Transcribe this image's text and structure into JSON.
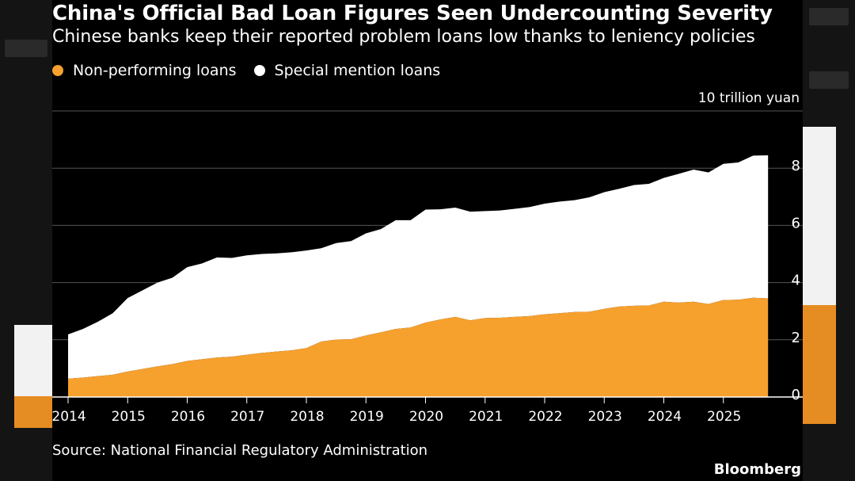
{
  "title": "China's Official Bad Loan Figures Seen Undercounting Severity",
  "subtitle": "Chinese banks keep their reported problem loans low thanks to leniency policies",
  "unit_label": "10 trillion yuan",
  "source": "Source: National Financial Regulatory Administration",
  "brand": "Bloomberg",
  "colors": {
    "npl": "#f6a02e",
    "sml": "#ffffff",
    "grid": "#555555",
    "background": "#000000",
    "text": "#ffffff"
  },
  "chart_data": {
    "type": "area",
    "stacked": true,
    "xlabel": "",
    "ylabel": "10 trillion yuan",
    "xlim": [
      2014,
      2026
    ],
    "ylim": [
      0,
      10
    ],
    "yticks": [
      0,
      2,
      4,
      6,
      8
    ],
    "xticks": [
      2014,
      2015,
      2016,
      2017,
      2018,
      2019,
      2020,
      2021,
      2022,
      2023,
      2024,
      2025
    ],
    "grid": "horizontal",
    "legend_position": "top-left",
    "x": [
      2014.0,
      2014.25,
      2014.5,
      2014.75,
      2015.0,
      2015.25,
      2015.5,
      2015.75,
      2016.0,
      2016.25,
      2016.5,
      2016.75,
      2017.0,
      2017.25,
      2017.5,
      2017.75,
      2018.0,
      2018.25,
      2018.5,
      2018.75,
      2019.0,
      2019.25,
      2019.5,
      2019.75,
      2020.0,
      2020.25,
      2020.5,
      2020.75,
      2021.0,
      2021.25,
      2021.5,
      2021.75,
      2022.0,
      2022.25,
      2022.5,
      2022.75,
      2023.0,
      2023.25,
      2023.5,
      2023.75,
      2024.0,
      2024.25,
      2024.5,
      2024.75,
      2025.0,
      2025.25,
      2025.5,
      2025.75
    ],
    "series": [
      {
        "name": "Non-performing loans",
        "color": "#f6a02e",
        "values": [
          0.64,
          0.68,
          0.73,
          0.78,
          0.89,
          0.98,
          1.07,
          1.15,
          1.26,
          1.32,
          1.38,
          1.41,
          1.48,
          1.54,
          1.59,
          1.63,
          1.71,
          1.94,
          2.01,
          2.02,
          2.15,
          2.26,
          2.38,
          2.43,
          2.6,
          2.71,
          2.8,
          2.68,
          2.76,
          2.77,
          2.8,
          2.83,
          2.89,
          2.93,
          2.97,
          2.98,
          3.08,
          3.16,
          3.19,
          3.2,
          3.33,
          3.3,
          3.33,
          3.25,
          3.39,
          3.4,
          3.47,
          3.45
        ]
      },
      {
        "name": "Special mention loans",
        "color": "#ffffff",
        "values": [
          1.55,
          1.7,
          1.9,
          2.15,
          2.57,
          2.75,
          2.93,
          3.02,
          3.28,
          3.35,
          3.5,
          3.45,
          3.47,
          3.46,
          3.43,
          3.43,
          3.41,
          3.26,
          3.37,
          3.43,
          3.57,
          3.61,
          3.8,
          3.75,
          3.95,
          3.85,
          3.82,
          3.8,
          3.74,
          3.75,
          3.78,
          3.81,
          3.87,
          3.9,
          3.91,
          4.0,
          4.08,
          4.12,
          4.22,
          4.25,
          4.33,
          4.5,
          4.62,
          4.6,
          4.76,
          4.8,
          4.97,
          5.0
        ]
      }
    ]
  }
}
